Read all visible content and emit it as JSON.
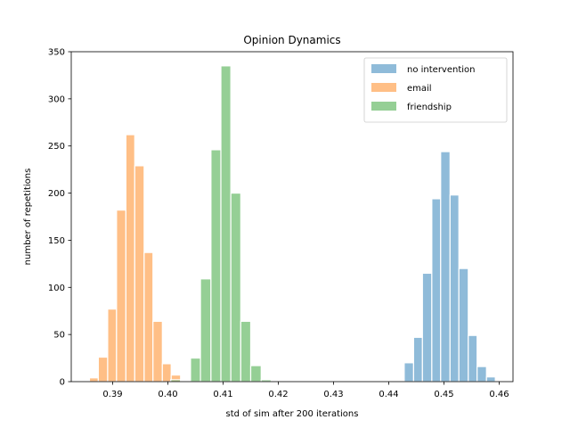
{
  "chart_data": {
    "type": "histogram",
    "title": "Opinion Dynamics",
    "xlabel": "std of sim after 200 iterations",
    "ylabel": "number of repetitions",
    "xlim": [
      0.3825,
      0.4625
    ],
    "ylim": [
      0,
      350
    ],
    "xticks": [
      "0.39",
      "0.40",
      "0.41",
      "0.42",
      "0.43",
      "0.44",
      "0.45",
      "0.46"
    ],
    "yticks": [
      "0",
      "50",
      "100",
      "150",
      "200",
      "250",
      "300",
      "350"
    ],
    "grid": false,
    "legend_position": "top-right",
    "alpha": 0.5,
    "series": [
      {
        "name": "no intervention",
        "color": "#1f77b4",
        "bins": [
          {
            "x0": 0.4428,
            "x1": 0.4445,
            "count": 20
          },
          {
            "x0": 0.4445,
            "x1": 0.4461,
            "count": 47
          },
          {
            "x0": 0.4461,
            "x1": 0.4478,
            "count": 115
          },
          {
            "x0": 0.4478,
            "x1": 0.4494,
            "count": 194
          },
          {
            "x0": 0.4494,
            "x1": 0.4511,
            "count": 244
          },
          {
            "x0": 0.4511,
            "x1": 0.4527,
            "count": 198
          },
          {
            "x0": 0.4527,
            "x1": 0.4544,
            "count": 120
          },
          {
            "x0": 0.4544,
            "x1": 0.456,
            "count": 49
          },
          {
            "x0": 0.456,
            "x1": 0.4577,
            "count": 16
          },
          {
            "x0": 0.4577,
            "x1": 0.4593,
            "count": 5
          }
        ]
      },
      {
        "name": "email",
        "color": "#ff7f0e",
        "bins": [
          {
            "x0": 0.3858,
            "x1": 0.3874,
            "count": 4
          },
          {
            "x0": 0.3874,
            "x1": 0.3891,
            "count": 26
          },
          {
            "x0": 0.3891,
            "x1": 0.3907,
            "count": 77
          },
          {
            "x0": 0.3907,
            "x1": 0.3924,
            "count": 182
          },
          {
            "x0": 0.3924,
            "x1": 0.394,
            "count": 262
          },
          {
            "x0": 0.394,
            "x1": 0.3957,
            "count": 229
          },
          {
            "x0": 0.3957,
            "x1": 0.3973,
            "count": 137
          },
          {
            "x0": 0.3973,
            "x1": 0.399,
            "count": 64
          },
          {
            "x0": 0.399,
            "x1": 0.4006,
            "count": 19
          },
          {
            "x0": 0.4006,
            "x1": 0.4023,
            "count": 7
          }
        ]
      },
      {
        "name": "friendship",
        "color": "#2ca02c",
        "bins": [
          {
            "x0": 0.4005,
            "x1": 0.4023,
            "count": 2
          },
          {
            "x0": 0.4023,
            "x1": 0.4041,
            "count": 1
          },
          {
            "x0": 0.4041,
            "x1": 0.4059,
            "count": 25
          },
          {
            "x0": 0.4059,
            "x1": 0.4078,
            "count": 109
          },
          {
            "x0": 0.4078,
            "x1": 0.4096,
            "count": 246
          },
          {
            "x0": 0.4096,
            "x1": 0.4114,
            "count": 335
          },
          {
            "x0": 0.4114,
            "x1": 0.4132,
            "count": 200
          },
          {
            "x0": 0.4132,
            "x1": 0.415,
            "count": 64
          },
          {
            "x0": 0.415,
            "x1": 0.4169,
            "count": 17
          },
          {
            "x0": 0.4169,
            "x1": 0.4187,
            "count": 2
          }
        ]
      }
    ]
  }
}
